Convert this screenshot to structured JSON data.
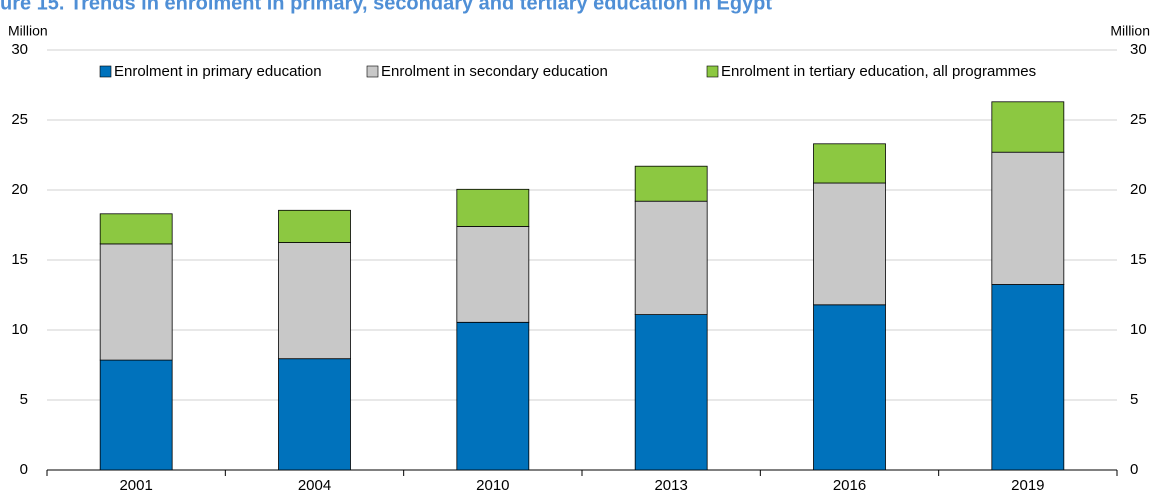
{
  "chart_data": {
    "type": "stacked-bar",
    "title": "ure 15. Trends in enrolment in primary, secondary and tertiary education in Egypt",
    "y_label": "Million",
    "y2_label": "Million",
    "categories": [
      "2001",
      "2004",
      "2010",
      "2013",
      "2016",
      "2019"
    ],
    "series": [
      {
        "name": "Enrolment in primary education",
        "color": "#0072bc",
        "values": [
          7.85,
          7.95,
          10.55,
          11.1,
          11.8,
          13.25
        ]
      },
      {
        "name": "Enrolment in secondary education",
        "color": "#c8c8c8",
        "values": [
          8.3,
          8.3,
          6.85,
          8.1,
          8.7,
          9.45
        ]
      },
      {
        "name": "Enrolment in tertiary education, all programmes",
        "color": "#8cc841",
        "values": [
          2.15,
          2.3,
          2.65,
          2.5,
          2.8,
          3.6
        ]
      }
    ],
    "ylim": [
      0,
      30
    ],
    "yticks": [
      0,
      5,
      10,
      15,
      20,
      25,
      30
    ],
    "y2lim": [
      0,
      30
    ],
    "y2ticks": [
      0,
      5,
      10,
      15,
      20,
      25,
      30
    ],
    "grid": true,
    "legend": "top"
  }
}
